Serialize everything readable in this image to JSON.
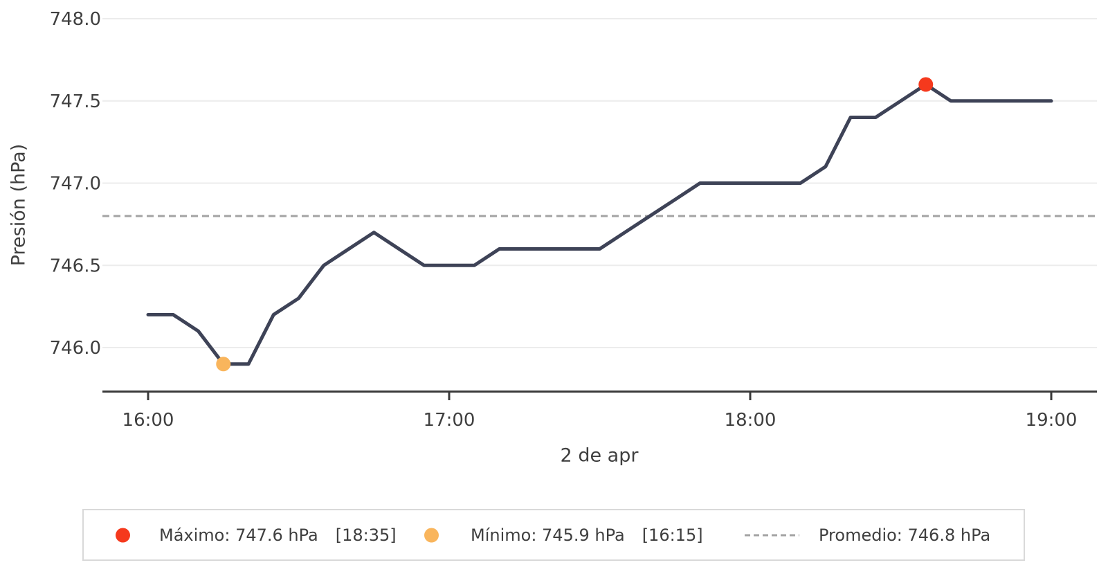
{
  "chart_data": {
    "type": "line",
    "title": "",
    "xlabel": "2 de apr",
    "ylabel": "Presión (hPa)",
    "x_tick_labels": [
      "16:00",
      "17:00",
      "18:00",
      "19:00"
    ],
    "y_tick_values": [
      748.0,
      747.5,
      747.0,
      746.5,
      746.0
    ],
    "y_tick_labels": [
      "748.0",
      "747.5",
      "747.0",
      "746.5",
      "746.0"
    ],
    "ylim": [
      745.7,
      748.0
    ],
    "grid": "horizontal",
    "legend_position": "bottom",
    "series": [
      {
        "name": "Presión",
        "color": "#3e4357",
        "x": [
          "16:00",
          "16:05",
          "16:10",
          "16:15",
          "16:20",
          "16:25",
          "16:30",
          "16:35",
          "16:40",
          "16:45",
          "16:50",
          "16:55",
          "17:00",
          "17:05",
          "17:10",
          "17:15",
          "17:20",
          "17:25",
          "17:30",
          "17:35",
          "17:40",
          "17:45",
          "17:50",
          "17:55",
          "18:00",
          "18:05",
          "18:10",
          "18:15",
          "18:20",
          "18:25",
          "18:30",
          "18:35",
          "18:40",
          "18:45",
          "18:50",
          "18:55",
          "19:00"
        ],
        "y": [
          746.2,
          746.2,
          746.1,
          745.9,
          745.9,
          746.2,
          746.3,
          746.5,
          746.6,
          746.7,
          746.6,
          746.5,
          746.5,
          746.5,
          746.6,
          746.6,
          746.6,
          746.6,
          746.6,
          746.7,
          746.8,
          746.9,
          747.0,
          747.0,
          747.0,
          747.0,
          747.0,
          747.1,
          747.4,
          747.4,
          747.5,
          747.6,
          747.5,
          747.5,
          747.5,
          747.5,
          747.5
        ]
      }
    ],
    "markers": {
      "max": {
        "time": "18:35",
        "value": 747.6,
        "color": "#f5391d"
      },
      "min": {
        "time": "16:15",
        "value": 745.9,
        "color": "#f9b55c"
      }
    },
    "average_line": {
      "value": 746.8,
      "color": "#a3a3a3",
      "style": "dashed"
    }
  },
  "legend": {
    "items": [
      {
        "swatch": "dot",
        "color": "#f5391d",
        "label": "Máximo: 747.6 hPa",
        "time": "[18:35]"
      },
      {
        "swatch": "dot",
        "color": "#f9b55c",
        "label": "Mínimo: 745.9 hPa",
        "time": "[16:15]"
      },
      {
        "swatch": "dash",
        "color": "#a3a3a3",
        "label": "Promedio: 746.8 hPa",
        "time": ""
      }
    ]
  },
  "colors": {
    "line": "#3e4357",
    "grid": "#ececec",
    "axis": "#3a3a3a",
    "text": "#3f3f3f",
    "average": "#a3a3a3",
    "legend_border": "#d9d9d9",
    "background": "#ffffff"
  }
}
